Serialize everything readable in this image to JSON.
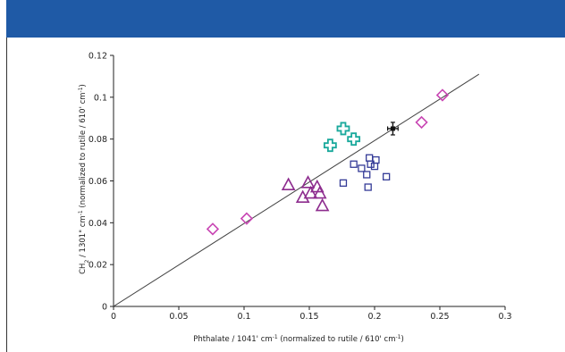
{
  "colors": {
    "header": "#1f5aa6",
    "magenta": "#c845b3",
    "purple": "#8d2c8e",
    "navy": "#343b97",
    "teal": "#1aa99c",
    "black": "#111111",
    "fit_line": "#444444"
  },
  "chart_data": {
    "type": "scatter",
    "xlabel": {
      "text": "Phthalate / 1041' cm",
      "sup": "-1",
      "rest": " (normalized to rutile / 610' cm",
      "sup2": "-1",
      "end": ")"
    },
    "ylabel": {
      "a": "CH",
      "sub": "2",
      "b": " / 1301\" cm",
      "sup": "-1",
      "c": " (normalized to rutile / 610' cm",
      "sup2": "-1",
      "d": ")"
    },
    "xlim": [
      0,
      0.3
    ],
    "ylim": [
      0,
      0.12
    ],
    "xticks": [
      0,
      0.05,
      0.1,
      0.15,
      0.2,
      0.25,
      0.3
    ],
    "xtick_labels": [
      "0",
      "0.05",
      "0.1",
      "0.15",
      "0.2",
      "0.25",
      "0.3"
    ],
    "yticks": [
      0,
      0.02,
      0.04,
      0.06,
      0.08,
      0.1,
      0.12
    ],
    "ytick_labels": [
      "0",
      "0.02",
      "0.04",
      "0.06",
      "0.08",
      "0.1",
      "0.12"
    ],
    "grid": false,
    "fit_line": {
      "x": [
        0,
        0.28
      ],
      "y": [
        0,
        0.111
      ]
    },
    "series": [
      {
        "marker": "diamond",
        "color": "magenta",
        "points": [
          [
            0.076,
            0.037
          ],
          [
            0.102,
            0.042
          ],
          [
            0.236,
            0.088
          ],
          [
            0.252,
            0.101
          ]
        ]
      },
      {
        "marker": "triangle",
        "color": "purple",
        "points": [
          [
            0.134,
            0.058
          ],
          [
            0.145,
            0.052
          ],
          [
            0.149,
            0.059
          ],
          [
            0.151,
            0.054
          ],
          [
            0.156,
            0.057
          ],
          [
            0.158,
            0.054
          ],
          [
            0.16,
            0.048
          ]
        ]
      },
      {
        "marker": "square",
        "color": "navy",
        "points": [
          [
            0.176,
            0.059
          ],
          [
            0.184,
            0.068
          ],
          [
            0.19,
            0.066
          ],
          [
            0.194,
            0.063
          ],
          [
            0.196,
            0.071
          ],
          [
            0.197,
            0.068
          ],
          [
            0.2,
            0.067
          ],
          [
            0.201,
            0.07
          ],
          [
            0.195,
            0.057
          ],
          [
            0.209,
            0.062
          ]
        ]
      },
      {
        "marker": "cross",
        "color": "teal",
        "points": [
          [
            0.166,
            0.077
          ],
          [
            0.176,
            0.085
          ],
          [
            0.184,
            0.08
          ]
        ]
      },
      {
        "marker": "errorbar",
        "color": "black",
        "points": [
          [
            0.214,
            0.085
          ]
        ],
        "xerr": 0.004,
        "yerr": 0.003
      }
    ]
  }
}
